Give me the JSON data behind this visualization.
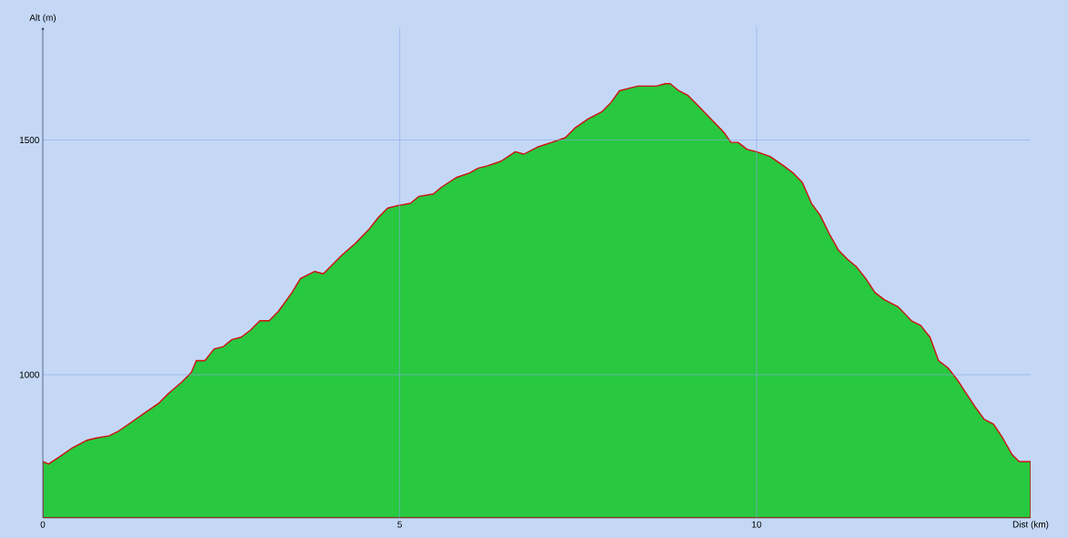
{
  "chart_data": {
    "type": "area",
    "xlabel": "Dist (km)",
    "ylabel": "Alt (m)",
    "x": [
      0,
      0.08,
      0.23,
      0.42,
      0.61,
      0.74,
      0.93,
      1.06,
      1.25,
      1.44,
      1.63,
      1.76,
      1.95,
      2.08,
      2.15,
      2.27,
      2.4,
      2.53,
      2.65,
      2.78,
      2.91,
      3.04,
      3.17,
      3.3,
      3.49,
      3.61,
      3.81,
      3.93,
      4.06,
      4.19,
      4.38,
      4.57,
      4.7,
      4.83,
      4.96,
      5.15,
      5.27,
      5.47,
      5.59,
      5.79,
      5.98,
      6.1,
      6.23,
      6.42,
      6.62,
      6.74,
      6.93,
      7.13,
      7.32,
      7.45,
      7.64,
      7.83,
      7.96,
      8.08,
      8.21,
      8.34,
      8.47,
      8.6,
      8.72,
      8.79,
      8.91,
      9.04,
      9.17,
      9.36,
      9.55,
      9.64,
      9.74,
      9.87,
      10.0,
      10.19,
      10.38,
      10.51,
      10.64,
      10.77,
      10.89,
      11.02,
      11.15,
      11.28,
      11.4,
      11.53,
      11.66,
      11.79,
      11.98,
      12.11,
      12.17,
      12.3,
      12.43,
      12.55,
      12.68,
      12.81,
      12.94,
      13.07,
      13.19,
      13.32,
      13.45,
      13.58,
      13.68,
      13.84
    ],
    "series": [
      {
        "color": "#28c840",
        "values": [
          815,
          810,
          825,
          845,
          860,
          865,
          870,
          880,
          900,
          920,
          940,
          960,
          985,
          1005,
          1030,
          1030,
          1055,
          1060,
          1075,
          1080,
          1095,
          1115,
          1115,
          1135,
          1175,
          1205,
          1220,
          1215,
          1235,
          1255,
          1280,
          1310,
          1335,
          1355,
          1360,
          1365,
          1380,
          1385,
          1400,
          1420,
          1430,
          1440,
          1445,
          1455,
          1475,
          1470,
          1485,
          1495,
          1505,
          1525,
          1545,
          1560,
          1580,
          1605,
          1610,
          1615,
          1615,
          1615,
          1620,
          1620,
          1605,
          1595,
          1575,
          1545,
          1515,
          1495,
          1495,
          1480,
          1475,
          1465,
          1445,
          1430,
          1410,
          1365,
          1340,
          1300,
          1265,
          1245,
          1230,
          1205,
          1175,
          1160,
          1145,
          1125,
          1115,
          1105,
          1080,
          1030,
          1015,
          990,
          960,
          930,
          905,
          895,
          865,
          830,
          815,
          815
        ]
      }
    ],
    "xlim": [
      0,
      13.84
    ],
    "ylim": [
      695,
      1740
    ],
    "xticks": [
      0,
      5,
      10
    ],
    "yticks": [
      1000,
      1500
    ],
    "grid": true
  }
}
